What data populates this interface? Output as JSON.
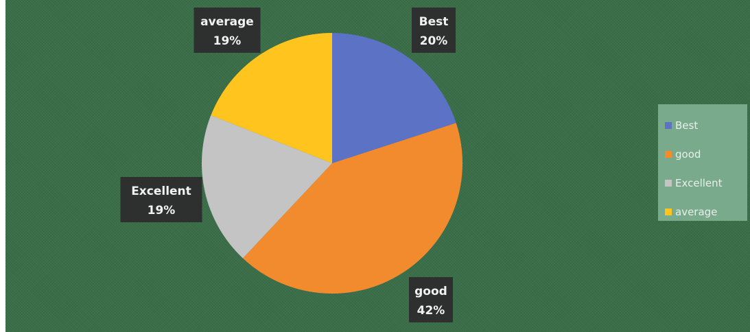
{
  "chart_data": {
    "type": "pie",
    "categories": [
      "Best",
      "good",
      "Excellent",
      "average"
    ],
    "values": [
      20,
      42,
      19,
      19
    ],
    "value_labels": [
      "20%",
      "42%",
      "19%",
      "19%"
    ],
    "colors": [
      "#5b72c5",
      "#f28a2e",
      "#c4c4c4",
      "#ffc51e"
    ],
    "legend_position": "right",
    "start_angle": "12 o'clock, clockwise"
  }
}
